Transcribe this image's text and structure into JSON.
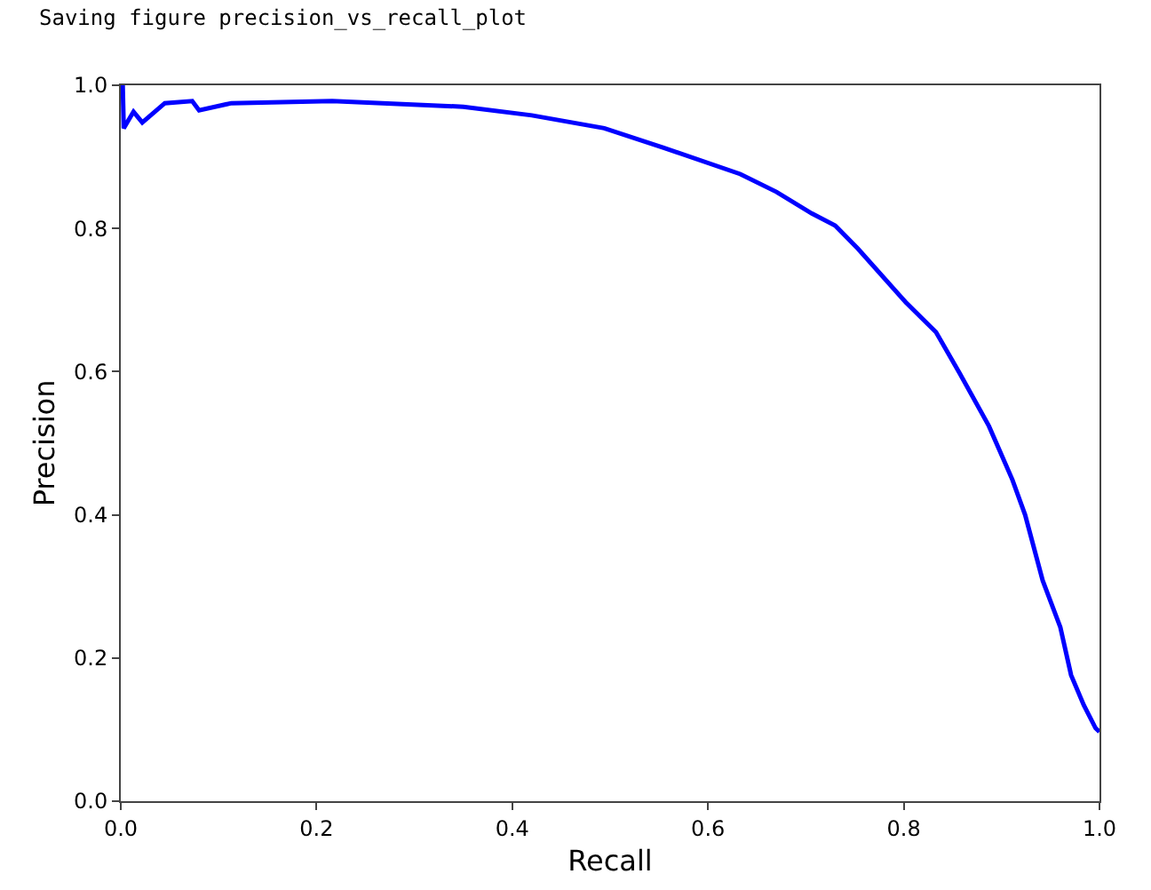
{
  "chart_data": {
    "type": "line",
    "xlabel": "Recall",
    "ylabel": "Precision",
    "annotations": [
      "Saving figure precision_vs_recall_plot"
    ],
    "xlim": [
      0,
      1
    ],
    "xticks": [
      {
        "value": 0,
        "label": "0.0"
      },
      {
        "value": 0.2,
        "label": "0.2"
      },
      {
        "value": 0.4,
        "label": "0.4"
      },
      {
        "value": 0.6,
        "label": "0.6"
      },
      {
        "value": 0.8,
        "label": "0.8"
      },
      {
        "value": 1,
        "label": "1.0"
      }
    ],
    "ylim": [
      0,
      1
    ],
    "yticks": [
      {
        "value": 0,
        "label": "0.0"
      },
      {
        "value": 0.2,
        "label": "0.2"
      },
      {
        "value": 0.4,
        "label": "0.4"
      },
      {
        "value": 0.6,
        "label": "0.6"
      },
      {
        "value": 0.8,
        "label": "0.8"
      },
      {
        "value": 1,
        "label": "1.0"
      }
    ],
    "grid": false,
    "marker": "none",
    "line_style": "solid",
    "series": [
      {
        "color": "#0000ff",
        "x": [
          0.002,
          0.003,
          0.013,
          0.022,
          0.045,
          0.073,
          0.08,
          0.113,
          0.216,
          0.35,
          0.42,
          0.494,
          0.554,
          0.633,
          0.67,
          0.706,
          0.73,
          0.753,
          0.802,
          0.833,
          0.857,
          0.887,
          0.911,
          0.924,
          0.942,
          0.96,
          0.971,
          0.984,
          0.996,
          1.0
        ],
        "values": [
          1.0,
          0.94,
          0.963,
          0.948,
          0.975,
          0.978,
          0.965,
          0.975,
          0.978,
          0.97,
          0.958,
          0.94,
          0.913,
          0.876,
          0.851,
          0.821,
          0.804,
          0.772,
          0.697,
          0.655,
          0.598,
          0.524,
          0.449,
          0.4,
          0.308,
          0.243,
          0.176,
          0.134,
          0.102,
          0.097
        ]
      }
    ]
  }
}
